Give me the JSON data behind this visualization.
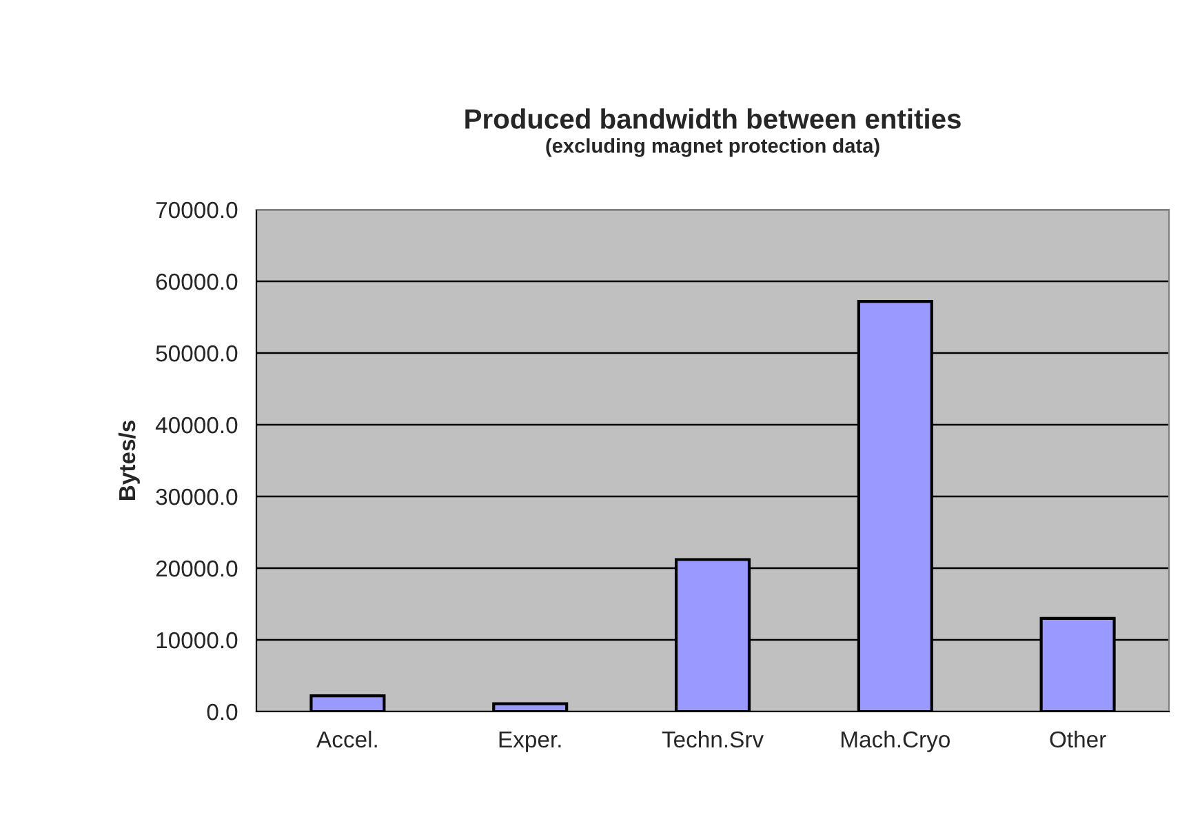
{
  "chart_data": {
    "type": "bar",
    "title": "Produced bandwidth between entities",
    "subtitle": "(excluding magnet protection data)",
    "ylabel": "Bytes/s",
    "categories": [
      "Accel.",
      "Exper.",
      "Techn.Srv",
      "Mach.Cryo",
      "Other"
    ],
    "values": [
      2200,
      1100,
      21200,
      57200,
      13000
    ],
    "color": "#9999ff",
    "ylim": [
      0,
      70000
    ],
    "yticks": [
      {
        "value": 0,
        "label": "0.0"
      },
      {
        "value": 10000,
        "label": "10000.0"
      },
      {
        "value": 20000,
        "label": "20000.0"
      },
      {
        "value": 30000,
        "label": "30000.0"
      },
      {
        "value": 40000,
        "label": "40000.0"
      },
      {
        "value": 50000,
        "label": "50000.0"
      },
      {
        "value": 60000,
        "label": "60000.0"
      },
      {
        "value": 70000,
        "label": "70000.0"
      }
    ],
    "grid": "y"
  }
}
